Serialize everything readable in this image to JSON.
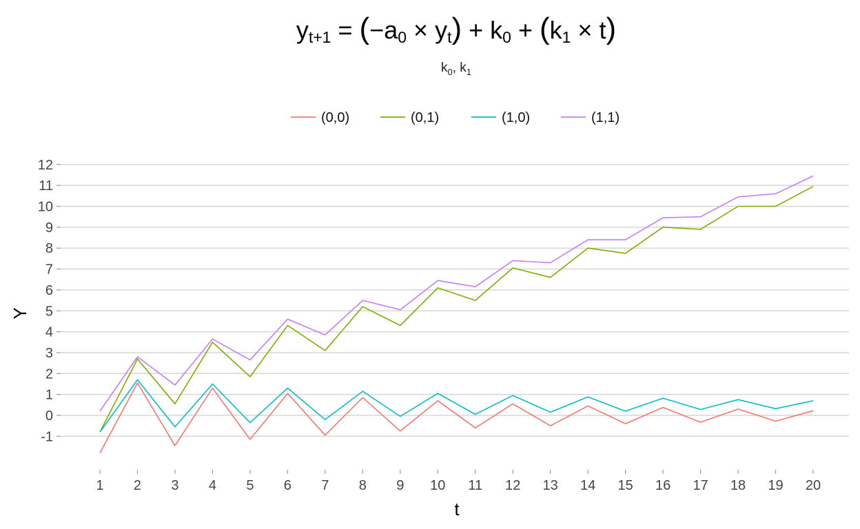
{
  "chart_data": {
    "type": "line",
    "title": {
      "y": "y",
      "y_sub": "t+1",
      "eq1": " = ",
      "p1": "(",
      "minus": "−",
      "a": "a",
      "a_sub": "0",
      "times1": " × ",
      "y2": "y",
      "y2_sub": "t",
      "p2": ")",
      "plus1": " + ",
      "k0": "k",
      "k0_sub": "0",
      "plus2": " + ",
      "p3": "(",
      "k1": "k",
      "k1_sub": "1",
      "times2": " × ",
      "t": "t",
      "p4": ")"
    },
    "subtitle": {
      "k0": "k",
      "k0_sub": "0",
      "sep": ", ",
      "k1": "k",
      "k1_sub": "1"
    },
    "xlabel": "t",
    "ylabel": "Y",
    "x": [
      1,
      2,
      3,
      4,
      5,
      6,
      7,
      8,
      9,
      10,
      11,
      12,
      13,
      14,
      15,
      16,
      17,
      18,
      19,
      20
    ],
    "xlim": [
      1,
      20
    ],
    "ylim": [
      -1.8,
      12
    ],
    "yticks": [
      -1,
      0,
      1,
      2,
      3,
      4,
      5,
      6,
      7,
      8,
      9,
      10,
      11,
      12
    ],
    "grid": true,
    "legend_position": "top",
    "series": [
      {
        "name": "(0,0)",
        "color": "#F8766D",
        "values": [
          -1.8,
          1.55,
          -1.45,
          1.3,
          -1.15,
          1.05,
          -0.95,
          0.85,
          -0.75,
          0.7,
          -0.6,
          0.55,
          -0.5,
          0.45,
          -0.4,
          0.38,
          -0.33,
          0.3,
          -0.28,
          0.22
        ]
      },
      {
        "name": "(0,1)",
        "color": "#7CAE00",
        "values": [
          -0.8,
          2.7,
          0.55,
          3.5,
          1.85,
          4.3,
          3.1,
          5.2,
          4.3,
          6.1,
          5.5,
          7.05,
          6.6,
          8.0,
          7.75,
          9.0,
          8.9,
          10.0,
          10.0,
          10.95
        ]
      },
      {
        "name": "(1,0)",
        "color": "#00BFC4",
        "values": [
          -0.8,
          1.7,
          -0.55,
          1.5,
          -0.35,
          1.3,
          -0.2,
          1.15,
          -0.05,
          1.05,
          0.05,
          0.95,
          0.15,
          0.88,
          0.2,
          0.82,
          0.28,
          0.75,
          0.32,
          0.7
        ]
      },
      {
        "name": "(1,1)",
        "color": "#C77CFF",
        "values": [
          0.2,
          2.8,
          1.45,
          3.65,
          2.65,
          4.6,
          3.85,
          5.5,
          5.05,
          6.45,
          6.15,
          7.4,
          7.3,
          8.4,
          8.4,
          9.45,
          9.5,
          10.45,
          10.6,
          11.45
        ]
      }
    ]
  }
}
